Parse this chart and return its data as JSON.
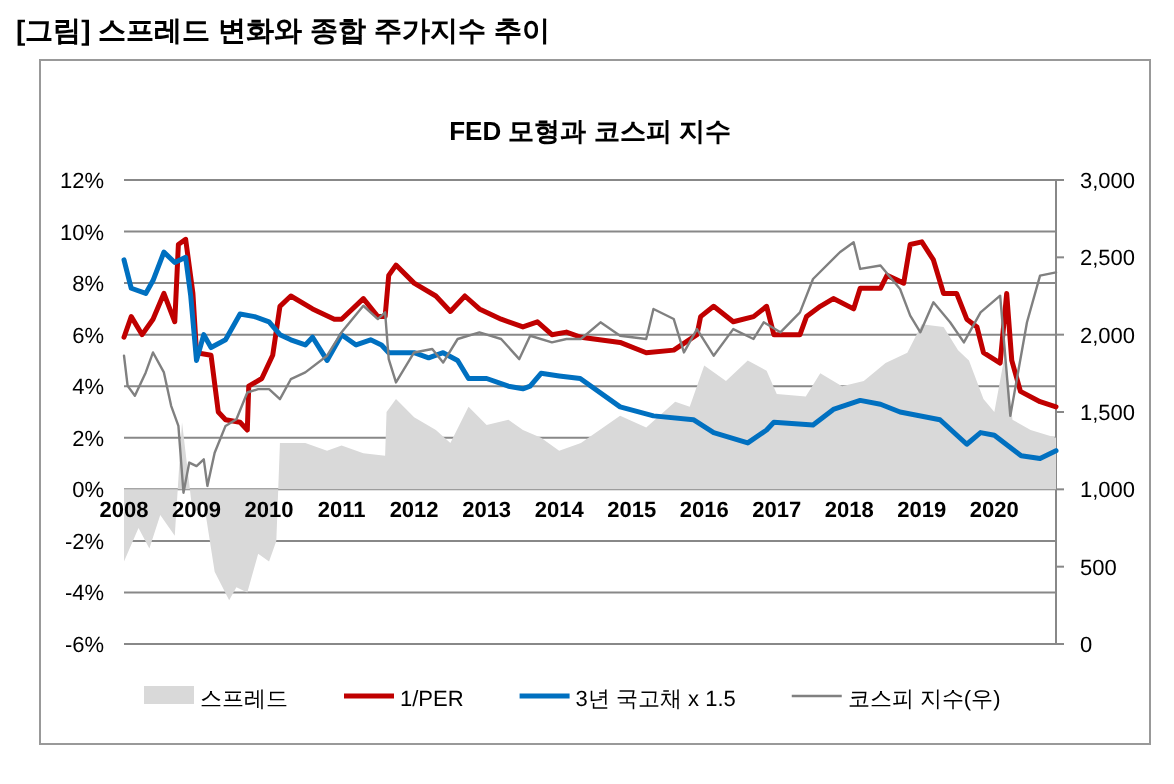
{
  "chart_data": {
    "type": "line",
    "title": "[그림] 스프레드 변화와 종합 주가지수 추이",
    "subtitle": "FED 모형과 코스피 지수",
    "xlim": [
      2008,
      2020.85
    ],
    "xticks": [
      2008,
      2009,
      2010,
      2011,
      2012,
      2013,
      2014,
      2015,
      2016,
      2017,
      2018,
      2019,
      2020
    ],
    "ylim": [
      -6,
      12
    ],
    "yticks": [
      {
        "value": -6,
        "label": "-6%"
      },
      {
        "value": -4,
        "label": "-4%"
      },
      {
        "value": -2,
        "label": "-2%"
      },
      {
        "value": 0,
        "label": "0%"
      },
      {
        "value": 2,
        "label": "2%"
      },
      {
        "value": 4,
        "label": "4%"
      },
      {
        "value": 6,
        "label": "6%"
      },
      {
        "value": 8,
        "label": "8%"
      },
      {
        "value": 10,
        "label": "10%"
      },
      {
        "value": 12,
        "label": "12%"
      }
    ],
    "y2lim": [
      0,
      3000
    ],
    "y2ticks": [
      0,
      500,
      {
        "value": 1000,
        "label": "1,000"
      },
      {
        "value": 1500,
        "label": "1,500"
      },
      {
        "value": 2000,
        "label": "2,000"
      },
      {
        "value": 2500,
        "label": "2,500"
      },
      {
        "value": 3000,
        "label": "3,000"
      }
    ],
    "grid": "y",
    "legend": "bottom",
    "marker": "none",
    "series": [
      {
        "name": "스프레드",
        "type": "area",
        "color": "#d9d9d9",
        "x": [
          2008,
          2008.2,
          2008.35,
          2008.5,
          2008.7,
          2008.8,
          2008.95,
          2009.1,
          2009.25,
          2009.45,
          2009.55,
          2009.7,
          2009.85,
          2010,
          2010.1,
          2010.15,
          2010.5,
          2010.8,
          2011,
          2011.3,
          2011.6,
          2011.62,
          2011.75,
          2012,
          2012.3,
          2012.5,
          2012.75,
          2013,
          2013.3,
          2013.5,
          2013.75,
          2014,
          2014.3,
          2014.84,
          2015.2,
          2015.6,
          2015.8,
          2016,
          2016.3,
          2016.6,
          2016.86,
          2017,
          2017.4,
          2017.6,
          2017.9,
          2018.2,
          2018.5,
          2018.8,
          2019,
          2019.3,
          2019.5,
          2019.65,
          2019.85,
          2020,
          2020.15,
          2020.25,
          2020.5,
          2020.85
        ],
        "values": [
          -2.8,
          -1.5,
          -2.3,
          -1.0,
          -1.8,
          2.6,
          -1.0,
          -0.5,
          -3.2,
          -4.3,
          -3.8,
          -4.0,
          -2.5,
          -2.8,
          -2.0,
          1.8,
          1.8,
          1.5,
          1.7,
          1.4,
          1.3,
          3.0,
          3.5,
          2.8,
          2.3,
          1.8,
          3.2,
          2.5,
          2.7,
          2.3,
          2.0,
          1.5,
          1.8,
          2.85,
          2.4,
          3.4,
          3.2,
          4.8,
          4.2,
          5.0,
          4.6,
          3.7,
          3.6,
          4.5,
          4.0,
          4.2,
          4.9,
          5.3,
          6.4,
          6.3,
          5.4,
          5.0,
          3.5,
          3.0,
          5.3,
          2.7,
          2.3,
          2.0
        ]
      },
      {
        "name": "1/PER",
        "color": "#c00000",
        "x": [
          2008,
          2008.1,
          2008.25,
          2008.4,
          2008.55,
          2008.7,
          2008.75,
          2008.85,
          2008.95,
          2009,
          2009.2,
          2009.3,
          2009.4,
          2009.6,
          2009.7,
          2009.72,
          2009.9,
          2010.05,
          2010.15,
          2010.3,
          2010.6,
          2010.9,
          2011,
          2011.3,
          2011.5,
          2011.6,
          2011.65,
          2011.75,
          2012,
          2012.3,
          2012.5,
          2012.7,
          2012.9,
          2013.2,
          2013.5,
          2013.7,
          2013.9,
          2014.1,
          2014.3,
          2014.84,
          2015.2,
          2015.58,
          2015.9,
          2015.95,
          2016.13,
          2016.4,
          2016.68,
          2016.86,
          2016.96,
          2017.32,
          2017.41,
          2017.6,
          2017.78,
          2018.06,
          2018.15,
          2018.43,
          2018.52,
          2018.75,
          2018.84,
          2019,
          2019.16,
          2019.3,
          2019.48,
          2019.62,
          2019.76,
          2019.85,
          2020.08,
          2020.17,
          2020.24,
          2020.36,
          2020.63,
          2020.85
        ],
        "values": [
          5.9,
          6.7,
          6.0,
          6.6,
          7.6,
          6.5,
          9.5,
          9.7,
          7.6,
          5.3,
          5.2,
          3.0,
          2.7,
          2.6,
          2.3,
          4.0,
          4.3,
          5.2,
          7.1,
          7.5,
          7.0,
          6.6,
          6.6,
          7.4,
          6.7,
          6.7,
          8.3,
          8.7,
          8.0,
          7.5,
          6.9,
          7.5,
          7.0,
          6.6,
          6.3,
          6.5,
          6.0,
          6.1,
          5.9,
          5.7,
          5.3,
          5.4,
          6.0,
          6.7,
          7.1,
          6.5,
          6.7,
          7.1,
          6.0,
          6.0,
          6.7,
          7.1,
          7.4,
          7.0,
          7.8,
          7.8,
          8.3,
          8.0,
          9.5,
          9.6,
          8.9,
          7.6,
          7.6,
          6.6,
          6.3,
          5.3,
          4.9,
          7.6,
          5.0,
          3.8,
          3.4,
          3.2
        ]
      },
      {
        "name": "3년 국고채 x 1.5",
        "color": "#0070c0",
        "x": [
          2008,
          2008.1,
          2008.3,
          2008.4,
          2008.55,
          2008.7,
          2008.85,
          2008.92,
          2009,
          2009.1,
          2009.2,
          2009.4,
          2009.6,
          2009.8,
          2010,
          2010.15,
          2010.3,
          2010.5,
          2010.6,
          2010.8,
          2011,
          2011.2,
          2011.4,
          2011.55,
          2011.65,
          2012,
          2012.2,
          2012.4,
          2012.6,
          2012.75,
          2013,
          2013.3,
          2013.5,
          2013.6,
          2013.75,
          2014,
          2014.29,
          2014.84,
          2015.3,
          2015.85,
          2016.13,
          2016.6,
          2016.86,
          2016.96,
          2017.5,
          2017.78,
          2018.15,
          2018.43,
          2018.7,
          2019.25,
          2019.62,
          2019.81,
          2020,
          2020.37,
          2020.63,
          2020.85
        ],
        "values": [
          8.9,
          7.8,
          7.6,
          8.1,
          9.2,
          8.8,
          9.0,
          7.5,
          5.0,
          6.0,
          5.5,
          5.8,
          6.8,
          6.7,
          6.5,
          6.0,
          5.8,
          5.6,
          5.9,
          5.0,
          6.0,
          5.6,
          5.8,
          5.6,
          5.3,
          5.3,
          5.1,
          5.3,
          5.0,
          4.3,
          4.3,
          4.0,
          3.9,
          4.0,
          4.5,
          4.4,
          4.3,
          3.2,
          2.85,
          2.7,
          2.2,
          1.8,
          2.3,
          2.6,
          2.5,
          3.1,
          3.45,
          3.3,
          3.0,
          2.7,
          1.75,
          2.2,
          2.1,
          1.3,
          1.2,
          1.5
        ]
      },
      {
        "name": "코스피 지수(우)",
        "axis": "y2",
        "color": "#808080",
        "x": [
          2008,
          2008.05,
          2008.15,
          2008.3,
          2008.4,
          2008.55,
          2008.65,
          2008.75,
          2008.82,
          2008.9,
          2009,
          2009.1,
          2009.15,
          2009.25,
          2009.4,
          2009.55,
          2009.7,
          2009.85,
          2010,
          2010.15,
          2010.3,
          2010.5,
          2010.8,
          2011,
          2011.3,
          2011.5,
          2011.6,
          2011.65,
          2011.75,
          2012,
          2012.25,
          2012.4,
          2012.6,
          2012.9,
          2013.2,
          2013.45,
          2013.6,
          2013.9,
          2014.1,
          2014.3,
          2014.57,
          2014.84,
          2015.2,
          2015.3,
          2015.58,
          2015.72,
          2015.9,
          2016.13,
          2016.4,
          2016.68,
          2016.82,
          2017.05,
          2017.32,
          2017.5,
          2017.87,
          2018.06,
          2018.15,
          2018.43,
          2018.7,
          2018.84,
          2018.98,
          2019.16,
          2019.39,
          2019.58,
          2019.81,
          2020.08,
          2020.22,
          2020.45,
          2020.63,
          2020.85
        ],
        "values": [
          1864,
          1669,
          1605,
          1756,
          1885,
          1756,
          1540,
          1410,
          978,
          1173,
          1150,
          1194,
          1022,
          1237,
          1410,
          1453,
          1626,
          1648,
          1648,
          1583,
          1712,
          1756,
          1864,
          2015,
          2187,
          2101,
          2144,
          1842,
          1691,
          1885,
          1907,
          1820,
          1972,
          2015,
          1972,
          1842,
          1993,
          1950,
          1972,
          1972,
          2080,
          1993,
          1972,
          2166,
          2101,
          1885,
          2036,
          1864,
          2036,
          1972,
          2080,
          2015,
          2144,
          2360,
          2533,
          2598,
          2425,
          2447,
          2295,
          2123,
          2015,
          2209,
          2080,
          1950,
          2144,
          2252,
          1475,
          2080,
          2382,
          2403
        ]
      }
    ]
  }
}
